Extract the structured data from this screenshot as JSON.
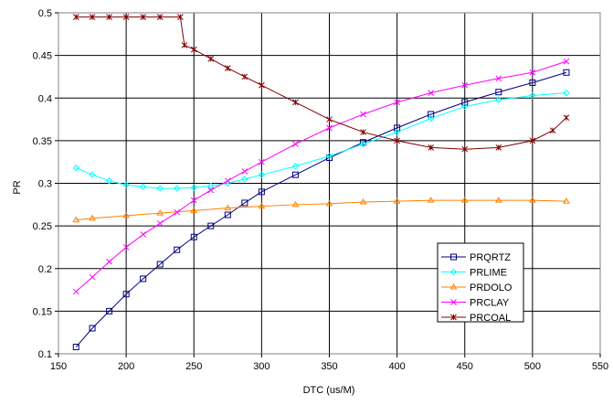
{
  "chart_data": {
    "type": "line",
    "title": "",
    "xlabel": "DTC (us/M)",
    "ylabel": "PR",
    "xlim": [
      150,
      550
    ],
    "ylim": [
      0.1,
      0.5
    ],
    "xticks": [
      "150",
      "200",
      "250",
      "300",
      "350",
      "400",
      "450",
      "500",
      "550"
    ],
    "yticks": [
      "0.1",
      "0.15",
      "0.2",
      "0.25",
      "0.3",
      "0.35",
      "0.4",
      "0.45",
      "0.5"
    ],
    "grid": true,
    "legend_position": "bottom-right",
    "series": [
      {
        "name": "PRQRTZ",
        "color": "#000080",
        "marker": "square",
        "points": [
          [
            163,
            0.108
          ],
          [
            175,
            0.13
          ],
          [
            187.5,
            0.15
          ],
          [
            200,
            0.17
          ],
          [
            212.5,
            0.188
          ],
          [
            225,
            0.205
          ],
          [
            237.5,
            0.222
          ],
          [
            250,
            0.237
          ],
          [
            262.5,
            0.25
          ],
          [
            275,
            0.263
          ],
          [
            287.5,
            0.277
          ],
          [
            300,
            0.29
          ],
          [
            325,
            0.31
          ],
          [
            350,
            0.33
          ],
          [
            375,
            0.348
          ],
          [
            400,
            0.365
          ],
          [
            425,
            0.381
          ],
          [
            450,
            0.395
          ],
          [
            475,
            0.407
          ],
          [
            500,
            0.418
          ],
          [
            525,
            0.43
          ]
        ]
      },
      {
        "name": "PRLIME",
        "color": "#00FFFF",
        "marker": "diamond",
        "points": [
          [
            163,
            0.318
          ],
          [
            175,
            0.31
          ],
          [
            187.5,
            0.303
          ],
          [
            200,
            0.298
          ],
          [
            212.5,
            0.296
          ],
          [
            225,
            0.294
          ],
          [
            237.5,
            0.294
          ],
          [
            250,
            0.295
          ],
          [
            262.5,
            0.297
          ],
          [
            275,
            0.3
          ],
          [
            287.5,
            0.305
          ],
          [
            300,
            0.31
          ],
          [
            325,
            0.32
          ],
          [
            350,
            0.332
          ],
          [
            375,
            0.346
          ],
          [
            400,
            0.36
          ],
          [
            425,
            0.376
          ],
          [
            450,
            0.39
          ],
          [
            475,
            0.398
          ],
          [
            500,
            0.403
          ],
          [
            525,
            0.406
          ]
        ]
      },
      {
        "name": "PRDOLO",
        "color": "#FF8000",
        "marker": "triangle",
        "points": [
          [
            163,
            0.257
          ],
          [
            175,
            0.259
          ],
          [
            200,
            0.262
          ],
          [
            225,
            0.265
          ],
          [
            250,
            0.268
          ],
          [
            275,
            0.271
          ],
          [
            300,
            0.273
          ],
          [
            325,
            0.275
          ],
          [
            350,
            0.276
          ],
          [
            375,
            0.278
          ],
          [
            400,
            0.279
          ],
          [
            425,
            0.28
          ],
          [
            450,
            0.28
          ],
          [
            475,
            0.28
          ],
          [
            500,
            0.28
          ],
          [
            525,
            0.279
          ]
        ]
      },
      {
        "name": "PRCLAY",
        "color": "#FF00FF",
        "marker": "x",
        "points": [
          [
            163,
            0.173
          ],
          [
            175,
            0.19
          ],
          [
            187.5,
            0.208
          ],
          [
            200,
            0.225
          ],
          [
            212.5,
            0.24
          ],
          [
            225,
            0.253
          ],
          [
            237.5,
            0.266
          ],
          [
            250,
            0.28
          ],
          [
            262.5,
            0.292
          ],
          [
            275,
            0.303
          ],
          [
            287.5,
            0.314
          ],
          [
            300,
            0.325
          ],
          [
            325,
            0.346
          ],
          [
            350,
            0.365
          ],
          [
            375,
            0.381
          ],
          [
            400,
            0.395
          ],
          [
            425,
            0.406
          ],
          [
            450,
            0.415
          ],
          [
            475,
            0.423
          ],
          [
            500,
            0.43
          ],
          [
            525,
            0.443
          ]
        ]
      },
      {
        "name": "PRCOAL",
        "color": "#800000",
        "marker": "star",
        "points": [
          [
            163,
            0.495
          ],
          [
            175,
            0.495
          ],
          [
            187.5,
            0.495
          ],
          [
            200,
            0.495
          ],
          [
            212.5,
            0.495
          ],
          [
            225,
            0.495
          ],
          [
            240,
            0.495
          ],
          [
            243,
            0.462
          ],
          [
            250,
            0.457
          ],
          [
            262.5,
            0.446
          ],
          [
            275,
            0.435
          ],
          [
            287.5,
            0.425
          ],
          [
            300,
            0.415
          ],
          [
            325,
            0.395
          ],
          [
            350,
            0.375
          ],
          [
            375,
            0.36
          ],
          [
            400,
            0.35
          ],
          [
            425,
            0.342
          ],
          [
            450,
            0.34
          ],
          [
            475,
            0.342
          ],
          [
            500,
            0.35
          ],
          [
            515,
            0.362
          ],
          [
            525,
            0.377
          ]
        ]
      }
    ]
  }
}
